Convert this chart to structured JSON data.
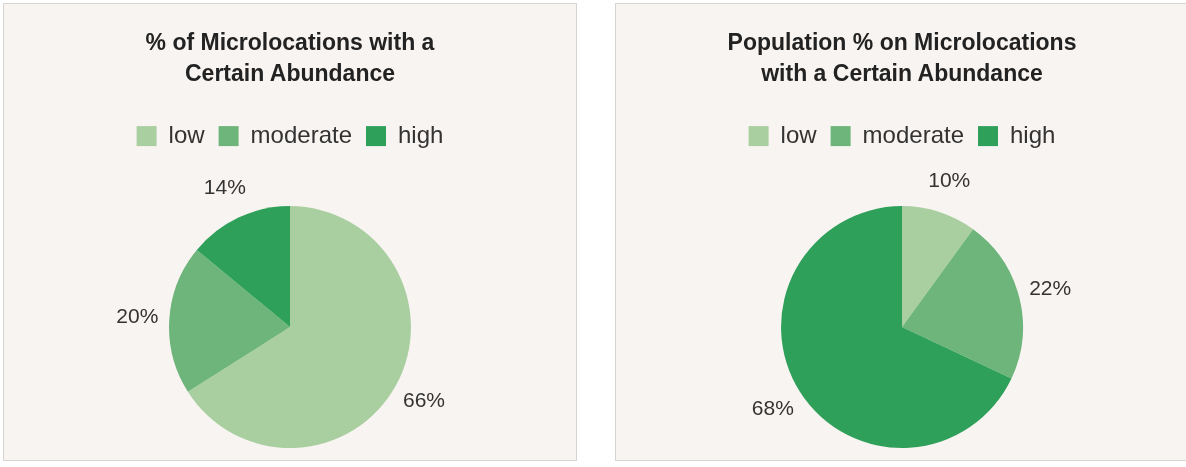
{
  "chart_data": [
    {
      "type": "pie",
      "title": "% of Microlocations with a Certain Abundance",
      "categories": [
        "low",
        "moderate",
        "high"
      ],
      "values": [
        66,
        20,
        14
      ],
      "value_labels": [
        "66%",
        "20%",
        "14%"
      ],
      "colors": [
        "#a9cfa0",
        "#6db57a",
        "#2fa05a"
      ],
      "legend": "top"
    },
    {
      "type": "pie",
      "title": "Population % on Microlocations with a Certain Abundance",
      "categories": [
        "low",
        "moderate",
        "high"
      ],
      "values": [
        10,
        22,
        68
      ],
      "value_labels": [
        "10%",
        "22%",
        "68%"
      ],
      "colors": [
        "#a9cfa0",
        "#6db57a",
        "#2fa05a"
      ],
      "legend": "top"
    }
  ]
}
